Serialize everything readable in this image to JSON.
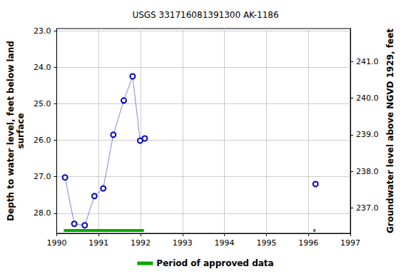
{
  "chart_data": {
    "type": "line",
    "title": "USGS 331716081391300 AK-1186",
    "ylabel": "Depth to water level, feet below land\nsurface",
    "y2label": "Groundwater level above NGVD 1929, feet",
    "series": [
      {
        "x": [
          1990.2,
          1990.42,
          1990.67,
          1990.9,
          1991.11,
          1991.35,
          1991.6,
          1991.81,
          1991.99,
          1992.1
        ],
        "values": [
          27.02,
          28.29,
          28.33,
          27.53,
          27.32,
          25.85,
          24.91,
          24.25,
          26.01,
          25.95
        ],
        "color": "#0000cc",
        "marker": "circle",
        "line_style": "dotted"
      },
      {
        "x": [
          1996.17
        ],
        "values": [
          27.2
        ],
        "color": "#0000cc",
        "marker": "circle",
        "line_style": "dotted"
      }
    ],
    "approved": {
      "name": "Period of approved data",
      "color": "#00aa00",
      "periods": [
        [
          1990.17,
          1992.08
        ],
        [
          1996.12,
          1996.17
        ]
      ]
    },
    "xlim": [
      1990,
      1997
    ],
    "xticks": [
      1990,
      1991,
      1992,
      1993,
      1994,
      1995,
      1996,
      1997
    ],
    "ylim": [
      22.94,
      28.55
    ],
    "yticks": [
      {
        "value": 23,
        "label": "23.0"
      },
      {
        "value": 24,
        "label": "24.0"
      },
      {
        "value": 25,
        "label": "25.0"
      },
      {
        "value": 26,
        "label": "26.0"
      },
      {
        "value": 27,
        "label": "27.0"
      },
      {
        "value": 28,
        "label": "28.0"
      }
    ],
    "y2lim": [
      236.3,
      241.91
    ],
    "y2ticks": [
      {
        "value": 237,
        "label": "237.0"
      },
      {
        "value": 238,
        "label": "238.0"
      },
      {
        "value": 239,
        "label": "239.0"
      },
      {
        "value": 240,
        "label": "240.0"
      },
      {
        "value": 241,
        "label": "241.0"
      }
    ],
    "grid": true,
    "legend": "bottom"
  }
}
